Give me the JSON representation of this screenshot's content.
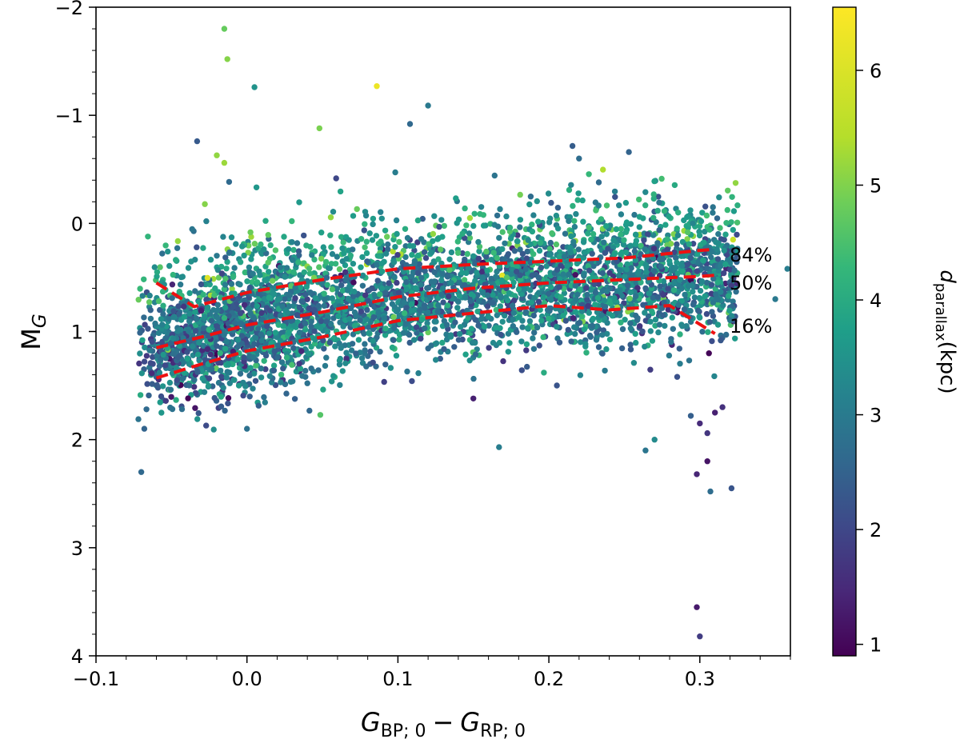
{
  "chart_data": {
    "type": "scatter",
    "title": "",
    "xlabel": {
      "main": "G",
      "sub1": "BP; 0",
      "minus": "−",
      "main2": "G",
      "sub2": "RP; 0"
    },
    "ylabel": {
      "main": "M",
      "sub": "G"
    },
    "xlim": [
      -0.1,
      0.36
    ],
    "ylim": [
      4,
      -2
    ],
    "y_inverted": true,
    "xticks": [
      -0.1,
      0.0,
      0.1,
      0.2,
      0.3
    ],
    "xtick_labels": [
      "−0.1",
      "0.0",
      "0.1",
      "0.2",
      "0.3"
    ],
    "yticks": [
      -2,
      -1,
      0,
      1,
      2,
      3,
      4
    ],
    "ytick_labels": [
      "−2",
      "−1",
      "0",
      "1",
      "2",
      "3",
      "4"
    ],
    "colorbar": {
      "label_main": "d",
      "label_sub": "parallax",
      "label_unit": "(kpc)",
      "range": [
        0.9,
        6.55
      ],
      "ticks": [
        1,
        2,
        3,
        4,
        5,
        6
      ],
      "tick_labels": [
        "1",
        "2",
        "3",
        "4",
        "5",
        "6"
      ],
      "colormap": "viridis"
    },
    "percentile_lines": [
      {
        "label": "84%",
        "x": [
          -0.06,
          -0.035,
          0.0,
          0.05,
          0.1,
          0.15,
          0.2,
          0.25,
          0.3,
          0.31
        ],
        "y": [
          0.55,
          0.77,
          0.64,
          0.52,
          0.42,
          0.38,
          0.35,
          0.32,
          0.25,
          0.24
        ]
      },
      {
        "label": "50%",
        "x": [
          -0.06,
          -0.03,
          0.0,
          0.05,
          0.1,
          0.15,
          0.2,
          0.25,
          0.3,
          0.31
        ],
        "y": [
          1.15,
          1.05,
          0.94,
          0.82,
          0.68,
          0.6,
          0.55,
          0.52,
          0.49,
          0.48
        ]
      },
      {
        "label": "16%",
        "x": [
          -0.06,
          -0.03,
          0.0,
          0.05,
          0.1,
          0.15,
          0.2,
          0.24,
          0.28,
          0.31
        ],
        "y": [
          1.43,
          1.3,
          1.18,
          1.05,
          0.9,
          0.83,
          0.76,
          0.8,
          0.76,
          1.02
        ]
      }
    ],
    "outliers": [
      {
        "x": -0.015,
        "y": -1.8,
        "c": 5.2
      },
      {
        "x": -0.013,
        "y": -1.52,
        "c": 5.5
      },
      {
        "x": 0.086,
        "y": -1.27,
        "c": 6.4
      },
      {
        "x": 0.005,
        "y": -1.26,
        "c": 3.8
      },
      {
        "x": -0.033,
        "y": -0.76,
        "c": 2.5
      },
      {
        "x": -0.02,
        "y": -0.63,
        "c": 5.6
      },
      {
        "x": -0.015,
        "y": -0.56,
        "c": 5.7
      },
      {
        "x": 0.048,
        "y": -0.88,
        "c": 5.4
      },
      {
        "x": 0.12,
        "y": -1.09,
        "c": 3.2
      },
      {
        "x": 0.108,
        "y": -0.92,
        "c": 2.8
      },
      {
        "x": 0.22,
        "y": -0.6,
        "c": 2.9
      },
      {
        "x": 0.253,
        "y": -0.66,
        "c": 2.7
      },
      {
        "x": 0.322,
        "y": 0.15,
        "c": 6.1
      },
      {
        "x": -0.07,
        "y": 2.3,
        "c": 2.8
      },
      {
        "x": 0.167,
        "y": 2.07,
        "c": 3.3
      },
      {
        "x": 0.298,
        "y": 3.55,
        "c": 1.3
      },
      {
        "x": 0.3,
        "y": 3.82,
        "c": 1.9
      },
      {
        "x": 0.305,
        "y": 2.2,
        "c": 1.2
      },
      {
        "x": 0.307,
        "y": 2.48,
        "c": 2.9
      },
      {
        "x": 0.321,
        "y": 2.45,
        "c": 2.4
      },
      {
        "x": 0.3,
        "y": 1.85,
        "c": 1.6
      },
      {
        "x": 0.31,
        "y": 1.75,
        "c": 1.4
      },
      {
        "x": 0.315,
        "y": 1.7,
        "c": 1.7
      },
      {
        "x": 0.294,
        "y": 1.78,
        "c": 2.6
      },
      {
        "x": 0.305,
        "y": 1.94,
        "c": 1.8
      },
      {
        "x": 0.15,
        "y": 1.62,
        "c": 1.4
      },
      {
        "x": 0.27,
        "y": 2.0,
        "c": 3.6
      },
      {
        "x": 0.264,
        "y": 2.1,
        "c": 3.1
      },
      {
        "x": 0.298,
        "y": 2.32,
        "c": 1.5
      },
      {
        "x": -0.027,
        "y": 1.87,
        "c": 2.2
      },
      {
        "x": -0.068,
        "y": 1.9,
        "c": 2.7
      },
      {
        "x": 0.0,
        "y": 1.9,
        "c": 3.0
      },
      {
        "x": 0.358,
        "y": 0.42,
        "c": 3.3
      },
      {
        "x": 0.35,
        "y": 0.7,
        "c": 3.2
      }
    ]
  }
}
